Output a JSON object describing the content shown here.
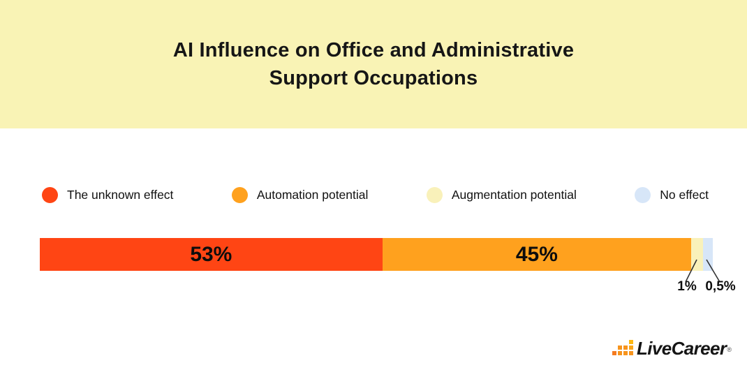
{
  "title": {
    "line1": "AI Influence on Office and Administrative",
    "line2": "Support Occupations"
  },
  "legend": [
    {
      "label": "The unknown effect",
      "color": "#FF4514"
    },
    {
      "label": "Automation potential",
      "color": "#FFA11E"
    },
    {
      "label": "Augmentation potential",
      "color": "#F9F1BA"
    },
    {
      "label": "No effect",
      "color": "#D7E6F8"
    }
  ],
  "chart_data": {
    "type": "bar",
    "stacked": true,
    "orientation": "horizontal",
    "title": "AI Influence on Office and Administrative Support Occupations",
    "categories": [
      "The unknown effect",
      "Automation potential",
      "Augmentation potential",
      "No effect"
    ],
    "values": [
      53,
      45,
      1,
      0.5
    ],
    "value_labels": [
      "53%",
      "45%",
      "1%",
      "0,5%"
    ],
    "unit": "%",
    "colors": [
      "#FF4514",
      "#FFA11E",
      "#F9F1BA",
      "#D7E6F8"
    ],
    "display_widths_pct": [
      50.9,
      45.9,
      1.7,
      1.5
    ],
    "legend_position": "top",
    "grid": false,
    "axes_visible": false
  },
  "branding": {
    "logo_text": "LiveCareer",
    "registered_mark": "®",
    "logo_squares": [
      {
        "row": 0,
        "col": 3,
        "color": "#FDB813"
      },
      {
        "row": 1,
        "col": 1,
        "color": "#F7941D"
      },
      {
        "row": 1,
        "col": 2,
        "color": "#F7941D"
      },
      {
        "row": 1,
        "col": 3,
        "color": "#FAA61A"
      },
      {
        "row": 2,
        "col": 0,
        "color": "#F47B20"
      },
      {
        "row": 2,
        "col": 1,
        "color": "#F7941D"
      },
      {
        "row": 2,
        "col": 2,
        "color": "#F7941D"
      },
      {
        "row": 2,
        "col": 3,
        "color": "#F7941D"
      }
    ]
  },
  "colors": {
    "header_bg": "#F9F3B5",
    "page_bg": "#FFFFFF",
    "text": "#161616",
    "leader_line": "#333333"
  }
}
